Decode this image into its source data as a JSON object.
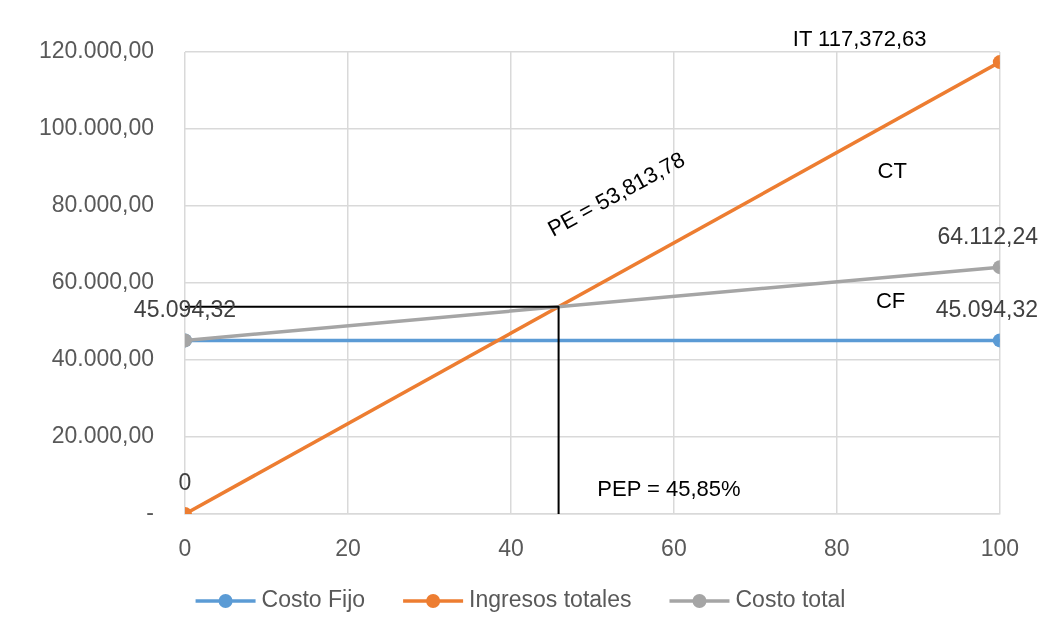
{
  "chart_data": {
    "type": "line",
    "annotations": [
      "IT 117,372,63",
      "PE = 53,813,78",
      "CT",
      "CF",
      "PEP = 45,85%"
    ],
    "xlim": [
      0,
      100
    ],
    "xticks": [
      0,
      20,
      40,
      60,
      80,
      100
    ],
    "ylim": [
      0,
      120000
    ],
    "yticks": [
      {
        "value": 0,
        "label": "-"
      },
      {
        "value": 20000,
        "label": "20.000,00"
      },
      {
        "value": 40000,
        "label": "40.000,00"
      },
      {
        "value": 60000,
        "label": "60.000,00"
      },
      {
        "value": 80000,
        "label": "80.000,00"
      },
      {
        "value": 100000,
        "label": "100.000,00"
      },
      {
        "value": 120000,
        "label": "120.000,00"
      }
    ],
    "grid": true,
    "legend": "bottom",
    "marker": "circle",
    "series": [
      {
        "name": "Costo Fijo",
        "color": "#5b9bd5",
        "x": [
          0,
          100
        ],
        "values": [
          45094.32,
          45094.32
        ],
        "value_labels": [
          null,
          "45.094,32"
        ]
      },
      {
        "name": "Ingresos totales",
        "color": "#ed7d31",
        "x": [
          0,
          100
        ],
        "values": [
          0,
          117372.63
        ],
        "value_labels": [
          "0",
          null
        ]
      },
      {
        "name": "Costo total",
        "color": "#a5a5a5",
        "x": [
          0,
          100
        ],
        "values": [
          45094.32,
          64112.24
        ],
        "value_labels": [
          "45.094,32",
          "64.112,24"
        ]
      },
      {
        "color": "#000000",
        "x": [
          0,
          45.85,
          45.85
        ],
        "values": [
          53813.78,
          53813.78,
          0
        ],
        "marker": "none"
      }
    ]
  }
}
